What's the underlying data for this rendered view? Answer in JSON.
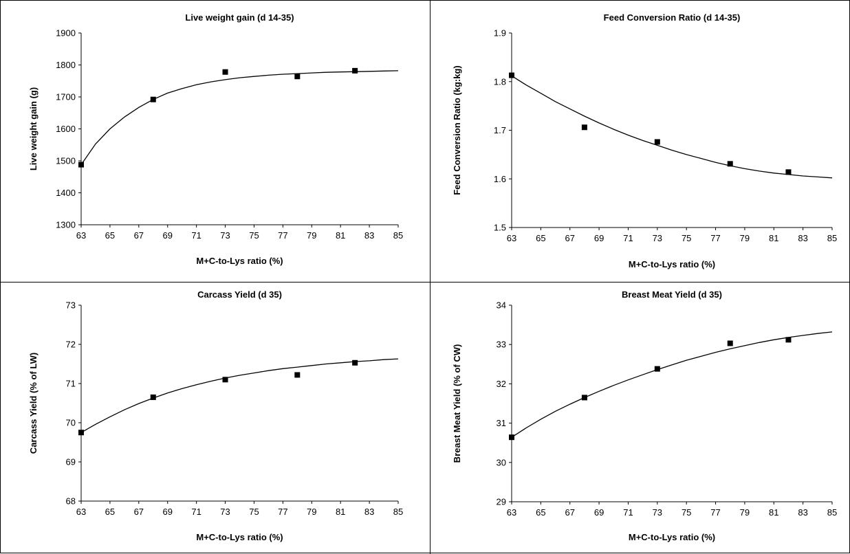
{
  "chart_data": [
    {
      "type": "scatter",
      "title": "Live weight gain (d 14-35)",
      "xlabel": "M+C-to-Lys ratio (%)",
      "ylabel": "Live weight gain (g)",
      "xlim": [
        63,
        85
      ],
      "ylim": [
        1300,
        1900
      ],
      "xticks": [
        "63",
        "65",
        "67",
        "69",
        "71",
        "73",
        "75",
        "77",
        "79",
        "81",
        "83",
        "85"
      ],
      "yticks": [
        "1300",
        "1400",
        "1500",
        "1600",
        "1700",
        "1800",
        "1900"
      ],
      "grid": false,
      "series": [
        {
          "kind": "points",
          "x": [
            63,
            68,
            73,
            78,
            82
          ],
          "y": [
            1488,
            1692,
            1778,
            1764,
            1782
          ]
        },
        {
          "kind": "curve",
          "x": [
            63,
            64,
            65,
            66,
            67,
            68,
            69,
            70,
            71,
            72,
            73,
            74,
            75,
            76,
            77,
            78,
            79,
            80,
            81,
            82,
            83,
            84,
            85
          ],
          "y": [
            1488,
            1553,
            1600,
            1637,
            1667,
            1692,
            1712,
            1726,
            1738,
            1747,
            1754,
            1760,
            1764,
            1768,
            1771,
            1773,
            1775,
            1777,
            1778,
            1779,
            1780,
            1781,
            1782
          ]
        }
      ]
    },
    {
      "type": "scatter",
      "title": "Feed Conversion Ratio (d 14-35)",
      "xlabel": "M+C-to-Lys ratio (%)",
      "ylabel": "Feed Conversion Ratio (kg:kg)",
      "xlim": [
        63,
        85
      ],
      "ylim": [
        1.5,
        1.9
      ],
      "xticks": [
        "63",
        "65",
        "67",
        "69",
        "71",
        "73",
        "75",
        "77",
        "79",
        "81",
        "83",
        "85"
      ],
      "yticks": [
        "1.5",
        "1.6",
        "1.7",
        "1.8",
        "1.9"
      ],
      "grid": false,
      "series": [
        {
          "kind": "points",
          "x": [
            63,
            68,
            73,
            78,
            82
          ],
          "y": [
            1.813,
            1.706,
            1.676,
            1.631,
            1.614
          ]
        },
        {
          "kind": "curve",
          "x": [
            63,
            64,
            65,
            66,
            67,
            68,
            69,
            70,
            71,
            72,
            73,
            74,
            75,
            76,
            77,
            78,
            79,
            80,
            81,
            82,
            83,
            84,
            85
          ],
          "y": [
            1.812,
            1.793,
            1.776,
            1.759,
            1.744,
            1.729,
            1.715,
            1.702,
            1.69,
            1.679,
            1.669,
            1.659,
            1.65,
            1.642,
            1.634,
            1.627,
            1.621,
            1.616,
            1.612,
            1.609,
            1.606,
            1.604,
            1.602
          ]
        }
      ]
    },
    {
      "type": "scatter",
      "title": "Carcass Yield (d 35)",
      "xlabel": "M+C-to-Lys ratio (%)",
      "ylabel": "Carcass Yield (% of LW)",
      "xlim": [
        63,
        85
      ],
      "ylim": [
        68,
        73
      ],
      "xticks": [
        "63",
        "65",
        "67",
        "69",
        "71",
        "73",
        "75",
        "77",
        "79",
        "81",
        "83",
        "85"
      ],
      "yticks": [
        "68",
        "69",
        "70",
        "71",
        "72",
        "73"
      ],
      "grid": false,
      "series": [
        {
          "kind": "points",
          "x": [
            63,
            68,
            73,
            78,
            82
          ],
          "y": [
            69.75,
            70.65,
            71.1,
            71.22,
            71.53
          ]
        },
        {
          "kind": "curve",
          "x": [
            63,
            64,
            65,
            66,
            67,
            68,
            69,
            70,
            71,
            72,
            73,
            74,
            75,
            76,
            77,
            78,
            79,
            80,
            81,
            82,
            83,
            84,
            85
          ],
          "y": [
            69.75,
            69.96,
            70.15,
            70.33,
            70.49,
            70.63,
            70.76,
            70.87,
            70.97,
            71.06,
            71.14,
            71.21,
            71.27,
            71.33,
            71.38,
            71.42,
            71.46,
            71.5,
            71.53,
            71.56,
            71.58,
            71.61,
            71.63
          ]
        }
      ]
    },
    {
      "type": "scatter",
      "title": "Breast Meat Yield (d 35)",
      "xlabel": "M+C-to-Lys ratio (%)",
      "ylabel": "Breast Meat Yield (% of CW)",
      "xlim": [
        63,
        85
      ],
      "ylim": [
        29,
        34
      ],
      "xticks": [
        "63",
        "65",
        "67",
        "69",
        "71",
        "73",
        "75",
        "77",
        "79",
        "81",
        "83",
        "85"
      ],
      "yticks": [
        "29",
        "30",
        "31",
        "32",
        "33",
        "34"
      ],
      "grid": false,
      "series": [
        {
          "kind": "points",
          "x": [
            63,
            68,
            73,
            78,
            82
          ],
          "y": [
            30.64,
            31.65,
            32.38,
            33.03,
            33.12
          ]
        },
        {
          "kind": "curve",
          "x": [
            63,
            64,
            65,
            66,
            67,
            68,
            69,
            70,
            71,
            72,
            73,
            74,
            75,
            76,
            77,
            78,
            79,
            80,
            81,
            82,
            83,
            84,
            85
          ],
          "y": [
            30.64,
            30.88,
            31.1,
            31.3,
            31.48,
            31.65,
            31.81,
            31.96,
            32.1,
            32.23,
            32.36,
            32.48,
            32.6,
            32.7,
            32.8,
            32.89,
            32.97,
            33.05,
            33.12,
            33.18,
            33.23,
            33.28,
            33.32
          ]
        }
      ]
    }
  ]
}
